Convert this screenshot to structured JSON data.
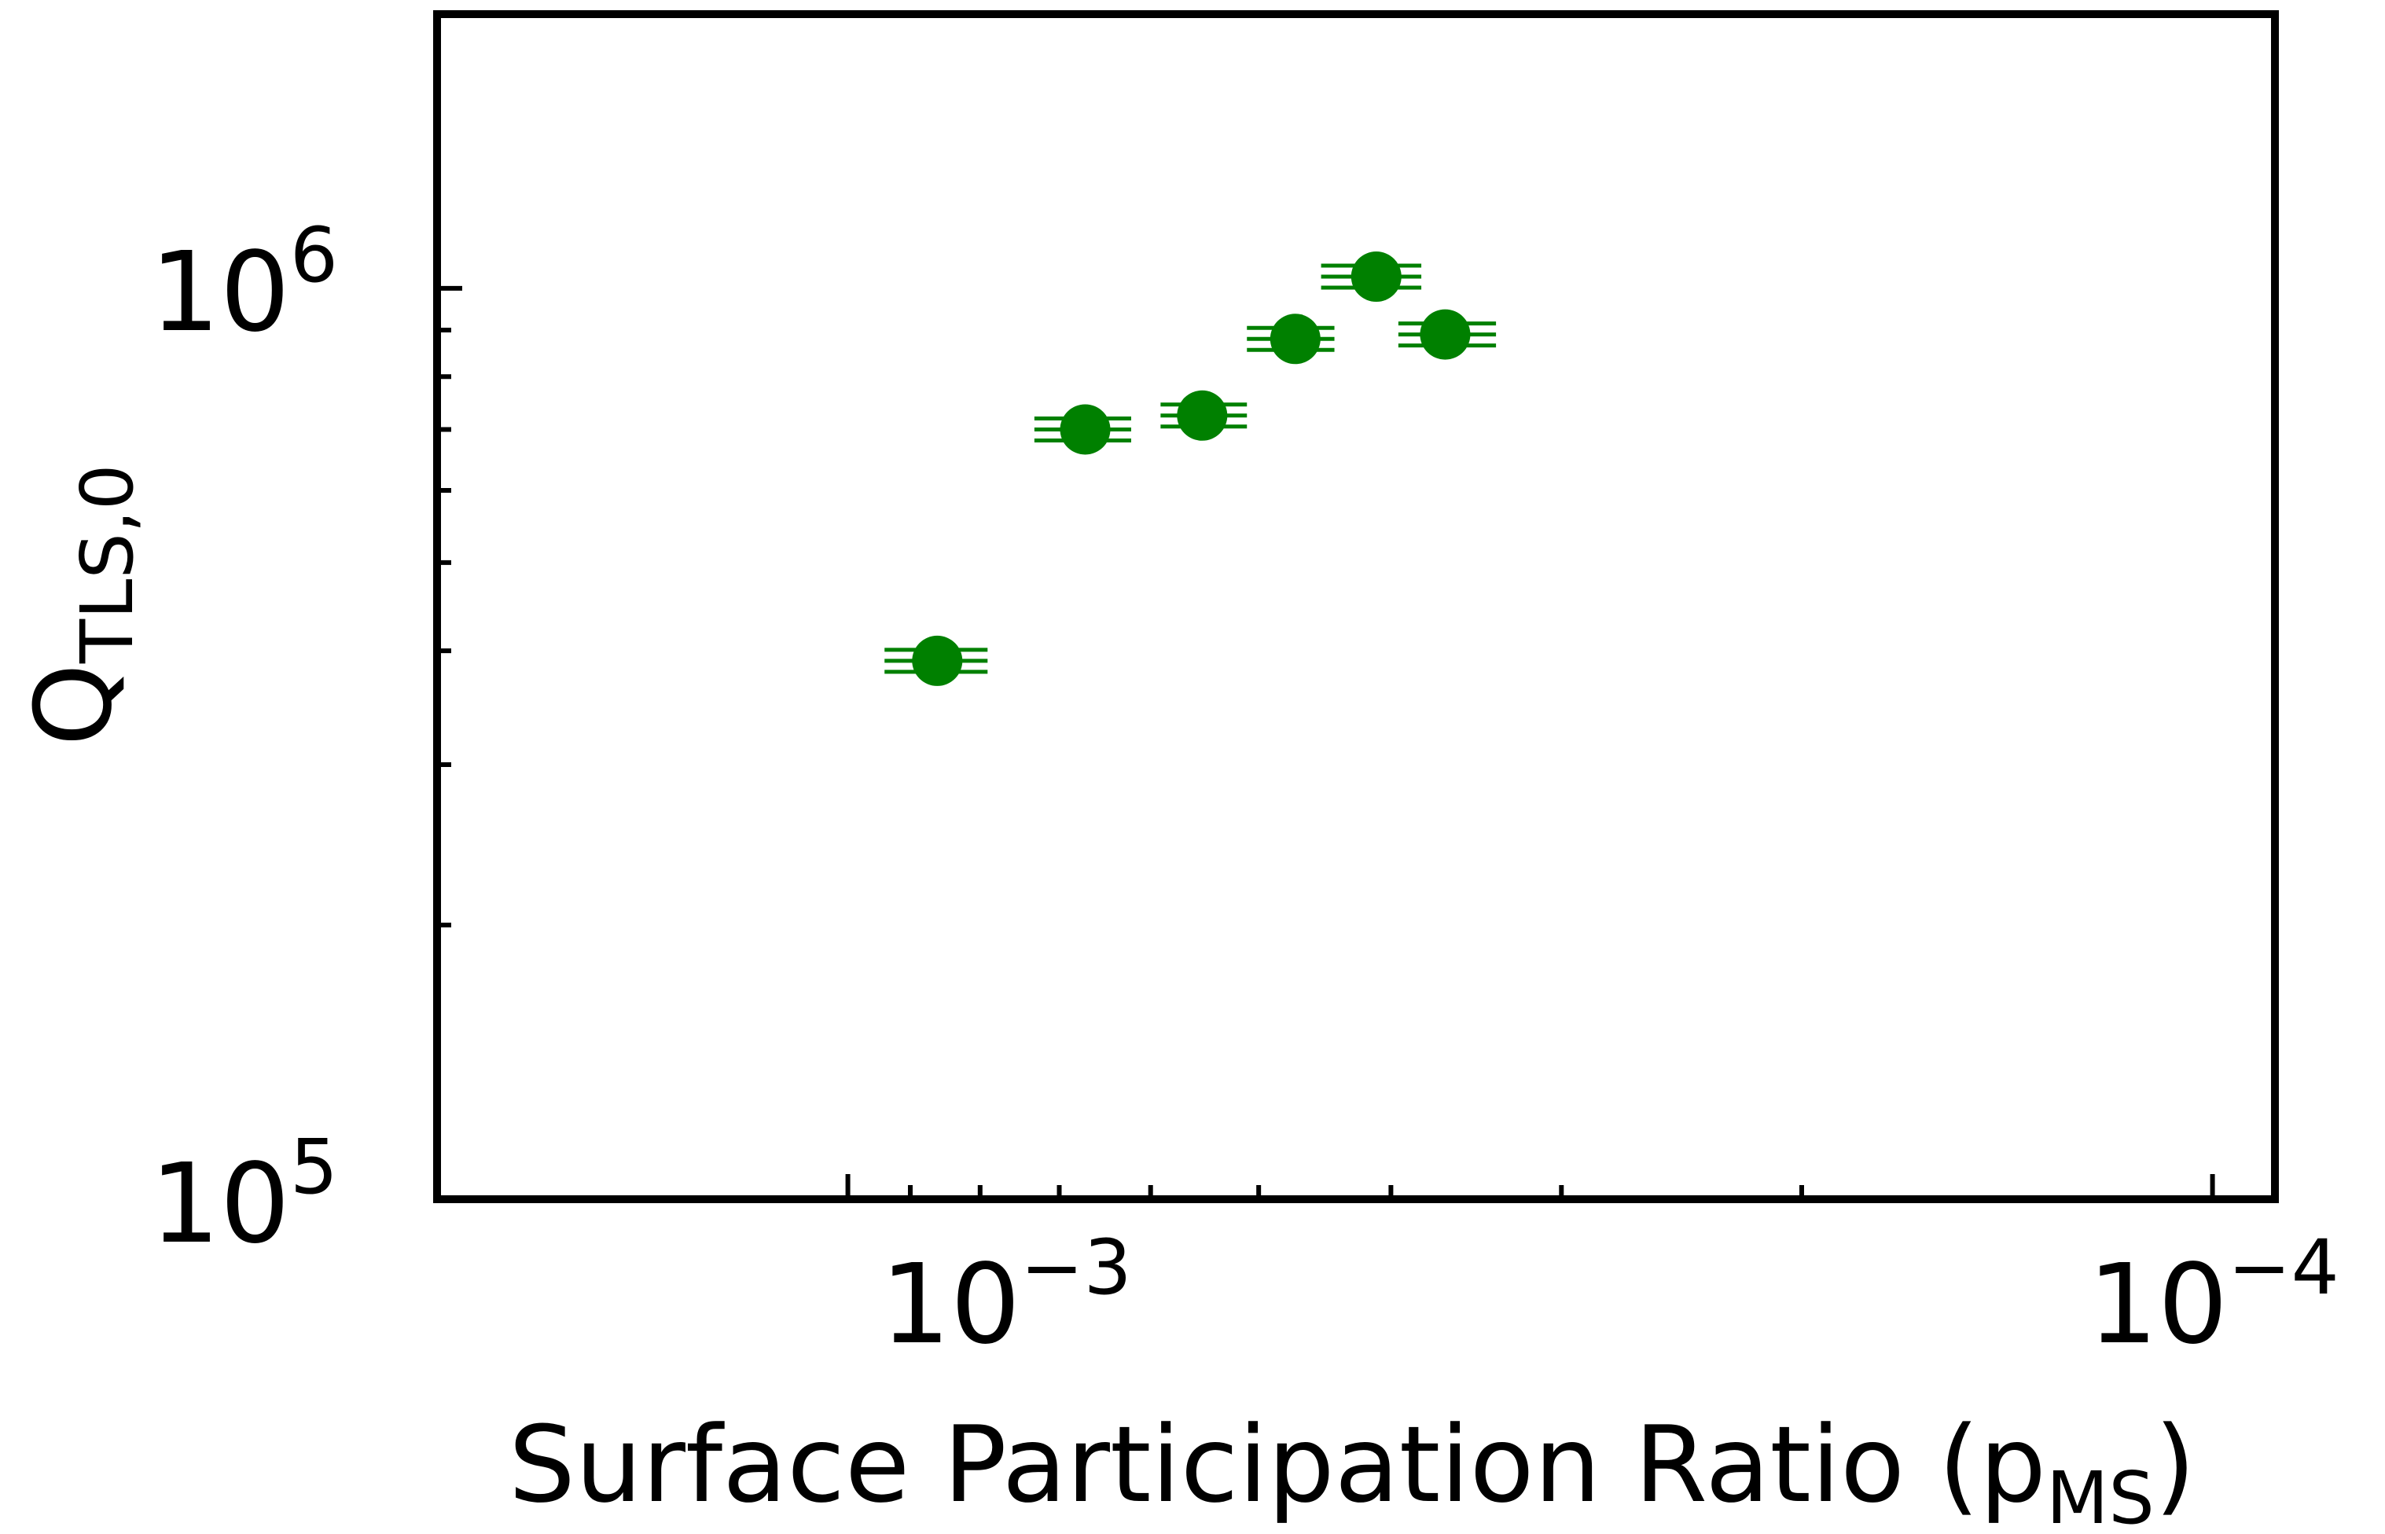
{
  "chart_data": {
    "type": "scatter",
    "x_scale": "log",
    "y_scale": "log",
    "x_reversed": true,
    "xlim": [
      0.002,
      9e-05
    ],
    "ylim": [
      100000,
      2000000
    ],
    "xlabel": {
      "main": "Surface Participation Ratio (p",
      "sub": "MS",
      "tail": ")"
    },
    "ylabel": {
      "main": "Q",
      "sub": "TLS,0"
    },
    "x_tick_labels": [
      {
        "value": 0.001,
        "base": "10",
        "exp": "−3"
      },
      {
        "value": 0.0001,
        "base": "10",
        "exp": "−4"
      }
    ],
    "y_tick_labels": [
      {
        "value": 100000,
        "base": "10",
        "exp": "5"
      },
      {
        "value": 1000000,
        "base": "10",
        "exp": "6"
      }
    ],
    "grid": false,
    "marker_color": "#008000",
    "points": [
      {
        "x": 0.00086,
        "y": 390000,
        "xerr": [
          8e-05,
          7e-05
        ]
      },
      {
        "x": 0.00067,
        "y": 700000,
        "xerr": [
          6e-05,
          5e-05
        ]
      },
      {
        "x": 0.00055,
        "y": 725000,
        "xerr": [
          4e-05,
          4e-05
        ]
      },
      {
        "x": 0.00047,
        "y": 880000,
        "xerr": [
          4e-05,
          3e-05
        ]
      },
      {
        "x": 0.00041,
        "y": 1030000,
        "xerr": [
          4e-05,
          3e-05
        ]
      },
      {
        "x": 0.000365,
        "y": 890000,
        "xerr": [
          3e-05,
          3e-05
        ]
      }
    ]
  }
}
